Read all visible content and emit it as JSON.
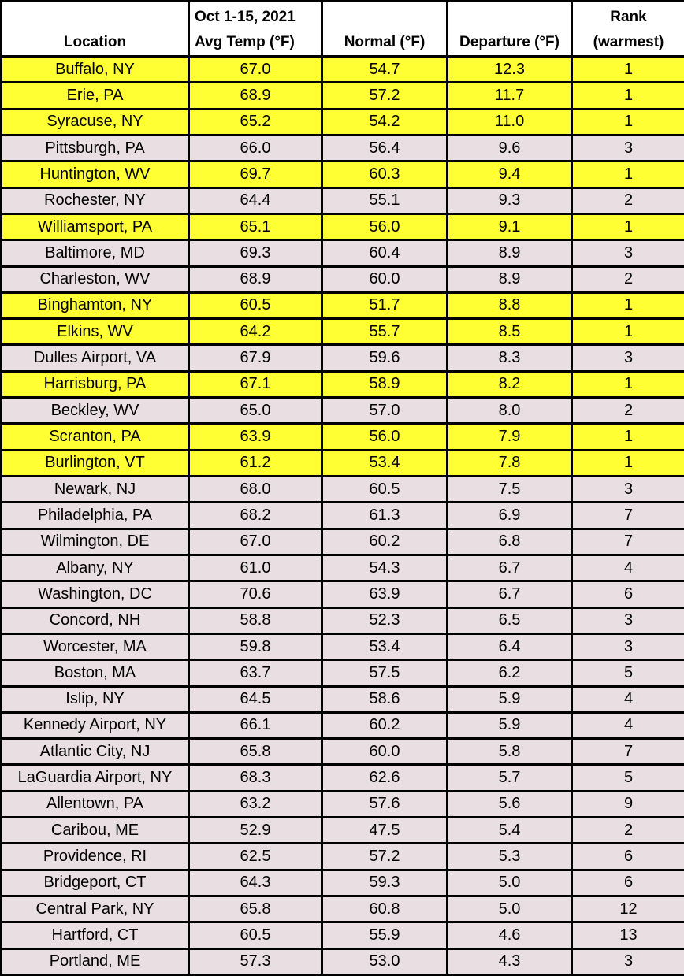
{
  "colors": {
    "highlight_yellow": "#ffff33",
    "row_pink": "#e9dee1",
    "border": "#000000",
    "header_bg": "#ffffff",
    "text": "#000000"
  },
  "chart_data": {
    "type": "table",
    "header": [
      {
        "line1": "",
        "line2": "Location"
      },
      {
        "line1": "Oct 1-15, 2021",
        "line2": "Avg Temp (°F)"
      },
      {
        "line1": "",
        "line2": "Normal (°F)"
      },
      {
        "line1": "",
        "line2": "Departure (°F)"
      },
      {
        "line1": "Rank",
        "line2": "(warmest)"
      }
    ],
    "highlight_note": "rows with rank 1 have yellow background",
    "rows": [
      {
        "location": "Buffalo, NY",
        "avg_temp": "67.0",
        "normal": "54.7",
        "departure": "12.3",
        "rank": "1",
        "highlighted": true
      },
      {
        "location": "Erie, PA",
        "avg_temp": "68.9",
        "normal": "57.2",
        "departure": "11.7",
        "rank": "1",
        "highlighted": true
      },
      {
        "location": "Syracuse, NY",
        "avg_temp": "65.2",
        "normal": "54.2",
        "departure": "11.0",
        "rank": "1",
        "highlighted": true
      },
      {
        "location": "Pittsburgh, PA",
        "avg_temp": "66.0",
        "normal": "56.4",
        "departure": "9.6",
        "rank": "3",
        "highlighted": false
      },
      {
        "location": "Huntington, WV",
        "avg_temp": "69.7",
        "normal": "60.3",
        "departure": "9.4",
        "rank": "1",
        "highlighted": true
      },
      {
        "location": "Rochester, NY",
        "avg_temp": "64.4",
        "normal": "55.1",
        "departure": "9.3",
        "rank": "2",
        "highlighted": false
      },
      {
        "location": "Williamsport, PA",
        "avg_temp": "65.1",
        "normal": "56.0",
        "departure": "9.1",
        "rank": "1",
        "highlighted": true
      },
      {
        "location": "Baltimore, MD",
        "avg_temp": "69.3",
        "normal": "60.4",
        "departure": "8.9",
        "rank": "3",
        "highlighted": false
      },
      {
        "location": "Charleston, WV",
        "avg_temp": "68.9",
        "normal": "60.0",
        "departure": "8.9",
        "rank": "2",
        "highlighted": false
      },
      {
        "location": "Binghamton, NY",
        "avg_temp": "60.5",
        "normal": "51.7",
        "departure": "8.8",
        "rank": "1",
        "highlighted": true
      },
      {
        "location": "Elkins, WV",
        "avg_temp": "64.2",
        "normal": "55.7",
        "departure": "8.5",
        "rank": "1",
        "highlighted": true
      },
      {
        "location": "Dulles Airport, VA",
        "avg_temp": "67.9",
        "normal": "59.6",
        "departure": "8.3",
        "rank": "3",
        "highlighted": false
      },
      {
        "location": "Harrisburg, PA",
        "avg_temp": "67.1",
        "normal": "58.9",
        "departure": "8.2",
        "rank": "1",
        "highlighted": true
      },
      {
        "location": "Beckley, WV",
        "avg_temp": "65.0",
        "normal": "57.0",
        "departure": "8.0",
        "rank": "2",
        "highlighted": false
      },
      {
        "location": "Scranton, PA",
        "avg_temp": "63.9",
        "normal": "56.0",
        "departure": "7.9",
        "rank": "1",
        "highlighted": true
      },
      {
        "location": "Burlington, VT",
        "avg_temp": "61.2",
        "normal": "53.4",
        "departure": "7.8",
        "rank": "1",
        "highlighted": true
      },
      {
        "location": "Newark, NJ",
        "avg_temp": "68.0",
        "normal": "60.5",
        "departure": "7.5",
        "rank": "3",
        "highlighted": false
      },
      {
        "location": "Philadelphia, PA",
        "avg_temp": "68.2",
        "normal": "61.3",
        "departure": "6.9",
        "rank": "7",
        "highlighted": false
      },
      {
        "location": "Wilmington, DE",
        "avg_temp": "67.0",
        "normal": "60.2",
        "departure": "6.8",
        "rank": "7",
        "highlighted": false
      },
      {
        "location": "Albany, NY",
        "avg_temp": "61.0",
        "normal": "54.3",
        "departure": "6.7",
        "rank": "4",
        "highlighted": false
      },
      {
        "location": "Washington, DC",
        "avg_temp": "70.6",
        "normal": "63.9",
        "departure": "6.7",
        "rank": "6",
        "highlighted": false
      },
      {
        "location": "Concord, NH",
        "avg_temp": "58.8",
        "normal": "52.3",
        "departure": "6.5",
        "rank": "3",
        "highlighted": false
      },
      {
        "location": "Worcester, MA",
        "avg_temp": "59.8",
        "normal": "53.4",
        "departure": "6.4",
        "rank": "3",
        "highlighted": false
      },
      {
        "location": "Boston, MA",
        "avg_temp": "63.7",
        "normal": "57.5",
        "departure": "6.2",
        "rank": "5",
        "highlighted": false
      },
      {
        "location": "Islip, NY",
        "avg_temp": "64.5",
        "normal": "58.6",
        "departure": "5.9",
        "rank": "4",
        "highlighted": false
      },
      {
        "location": "Kennedy Airport, NY",
        "avg_temp": "66.1",
        "normal": "60.2",
        "departure": "5.9",
        "rank": "4",
        "highlighted": false
      },
      {
        "location": "Atlantic City, NJ",
        "avg_temp": "65.8",
        "normal": "60.0",
        "departure": "5.8",
        "rank": "7",
        "highlighted": false
      },
      {
        "location": "LaGuardia Airport, NY",
        "avg_temp": "68.3",
        "normal": "62.6",
        "departure": "5.7",
        "rank": "5",
        "highlighted": false
      },
      {
        "location": "Allentown, PA",
        "avg_temp": "63.2",
        "normal": "57.6",
        "departure": "5.6",
        "rank": "9",
        "highlighted": false
      },
      {
        "location": "Caribou, ME",
        "avg_temp": "52.9",
        "normal": "47.5",
        "departure": "5.4",
        "rank": "2",
        "highlighted": false
      },
      {
        "location": "Providence, RI",
        "avg_temp": "62.5",
        "normal": "57.2",
        "departure": "5.3",
        "rank": "6",
        "highlighted": false
      },
      {
        "location": "Bridgeport, CT",
        "avg_temp": "64.3",
        "normal": "59.3",
        "departure": "5.0",
        "rank": "6",
        "highlighted": false
      },
      {
        "location": "Central Park, NY",
        "avg_temp": "65.8",
        "normal": "60.8",
        "departure": "5.0",
        "rank": "12",
        "highlighted": false
      },
      {
        "location": "Hartford, CT",
        "avg_temp": "60.5",
        "normal": "55.9",
        "departure": "4.6",
        "rank": "13",
        "highlighted": false
      },
      {
        "location": "Portland, ME",
        "avg_temp": "57.3",
        "normal": "53.0",
        "departure": "4.3",
        "rank": "3",
        "highlighted": false
      }
    ]
  }
}
